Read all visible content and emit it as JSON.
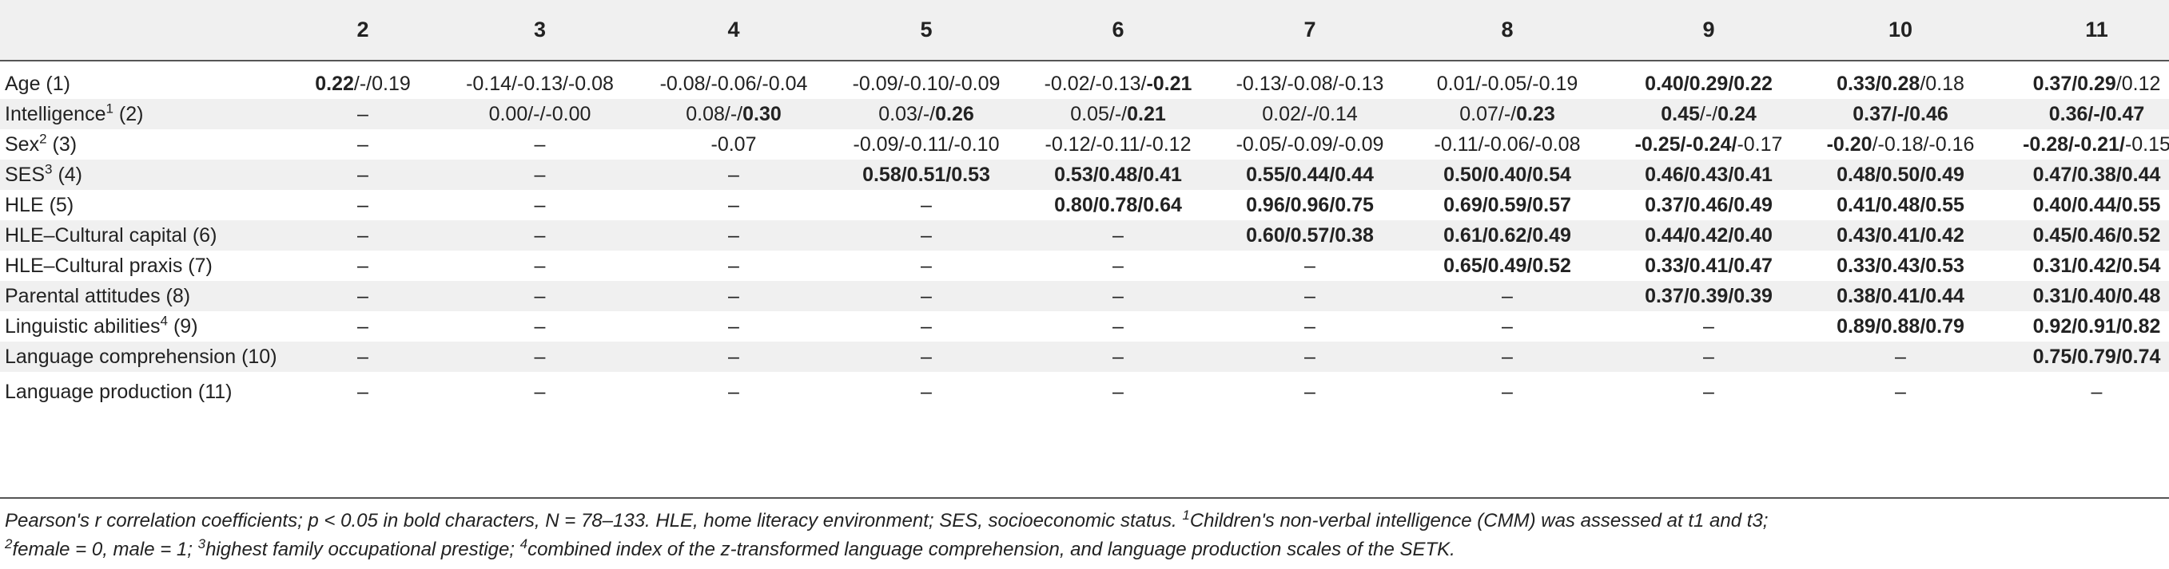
{
  "table": {
    "column_headers": [
      "",
      "2",
      "3",
      "4",
      "5",
      "6",
      "7",
      "8",
      "9",
      "10",
      "11"
    ],
    "rows": [
      {
        "label": "Age (1)",
        "sup": "",
        "cells": [
          "**0.22**/-/0.19",
          "-0.14/-0.13/-0.08",
          "-0.08/-0.06/-0.04",
          "-0.09/-0.10/-0.09",
          "-0.02/-0.13/**-0.21**",
          "-0.13/-0.08/-0.13",
          "0.01/-0.05/-0.19",
          "**0.40/0.29/0.22**",
          "**0.33/0.28**/0.18",
          "**0.37/0.29**/0.12"
        ]
      },
      {
        "label": "Intelligence (2)",
        "sup": "1",
        "cells": [
          "–",
          "0.00/-/-0.00",
          "0.08/-/**0.30**",
          "0.03/-/**0.26**",
          "0.05/-/**0.21**",
          "0.02/-/0.14",
          "0.07/-/**0.23**",
          "**0.45**/-/**0.24**",
          "**0.37/-/0.46**",
          "**0.36/-/0.47**"
        ]
      },
      {
        "label": "Sex (3)",
        "sup": "2",
        "cells": [
          "–",
          "–",
          "-0.07",
          "-0.09/-0.11/-0.10",
          "-0.12/-0.11/-0.12",
          "-0.05/-0.09/-0.09",
          "-0.11/-0.06/-0.08",
          "**-0.25/-0.24/**-0.17",
          "**-0.20**/-0.18/-0.16",
          "**-0.28/-0.21/**-0.15"
        ]
      },
      {
        "label": "SES (4)",
        "sup": "3",
        "cells": [
          "–",
          "–",
          "–",
          "**0.58/0.51/0.53**",
          "**0.53/0.48/0.41**",
          "**0.55/0.44/0.44**",
          "**0.50/0.40/0.54**",
          "**0.46/0.43/0.41**",
          "**0.48/0.50/0.49**",
          "**0.47/0.38/0.44**"
        ]
      },
      {
        "label": "HLE (5)",
        "sup": "",
        "cells": [
          "–",
          "–",
          "–",
          "–",
          "**0.80/0.78/0.64**",
          "**0.96/0.96/0.75**",
          "**0.69/0.59/0.57**",
          "**0.37/0.46/0.49**",
          "**0.41/0.48/0.55**",
          "**0.40/0.44/0.55**"
        ]
      },
      {
        "label": "HLE–Cultural capital (6)",
        "sup": "",
        "cells": [
          "–",
          "–",
          "–",
          "–",
          "–",
          "**0.60/0.57/0.38**",
          "**0.61/0.62/0.49**",
          "**0.44/0.42/0.40**",
          "**0.43/0.41/0.42**",
          "**0.45/0.46/0.52**"
        ]
      },
      {
        "label": "HLE–Cultural praxis (7)",
        "sup": "",
        "cells": [
          "–",
          "–",
          "–",
          "–",
          "–",
          "–",
          "**0.65/0.49/0.52**",
          "**0.33/0.41/0.47**",
          "**0.33/0.43/0.53**",
          "**0.31/0.42/0.54**"
        ]
      },
      {
        "label": "Parental attitudes (8)",
        "sup": "",
        "cells": [
          "–",
          "–",
          "–",
          "–",
          "–",
          "–",
          "–",
          "**0.37/0.39/0.39**",
          "**0.38/0.41/0.44**",
          "**0.31/0.40/0.48**"
        ]
      },
      {
        "label": "Linguistic abilities (9)",
        "sup": "4",
        "cells": [
          "–",
          "–",
          "–",
          "–",
          "–",
          "–",
          "–",
          "–",
          "**0.89/0.88/0.79**",
          "**0.92/0.91/0.82**"
        ]
      },
      {
        "label": "Language comprehension (10)",
        "sup": "",
        "cells": [
          "–",
          "–",
          "–",
          "–",
          "–",
          "–",
          "–",
          "–",
          "–",
          "**0.75/0.79/0.74**"
        ]
      },
      {
        "label": "Language production (11)",
        "sup": "",
        "cells": [
          "–",
          "–",
          "–",
          "–",
          "–",
          "–",
          "–",
          "–",
          "–",
          "–"
        ]
      }
    ]
  },
  "footnote": {
    "line1": "Pearson's r correlation coefficients; p < 0.05 in bold characters, N = 78–133. HLE, home literacy environment; SES, socioeconomic status.",
    "n1": "1",
    "t1": "Children's non-verbal intelligence (CMM) was assessed at t1 and t3;",
    "n2": "2",
    "t2": "female = 0, male = 1;",
    "n3": "3",
    "t3": "highest family occupational prestige;",
    "n4": "4",
    "t4": "combined index of the z-transformed language comprehension, and language production scales of the SETK."
  }
}
